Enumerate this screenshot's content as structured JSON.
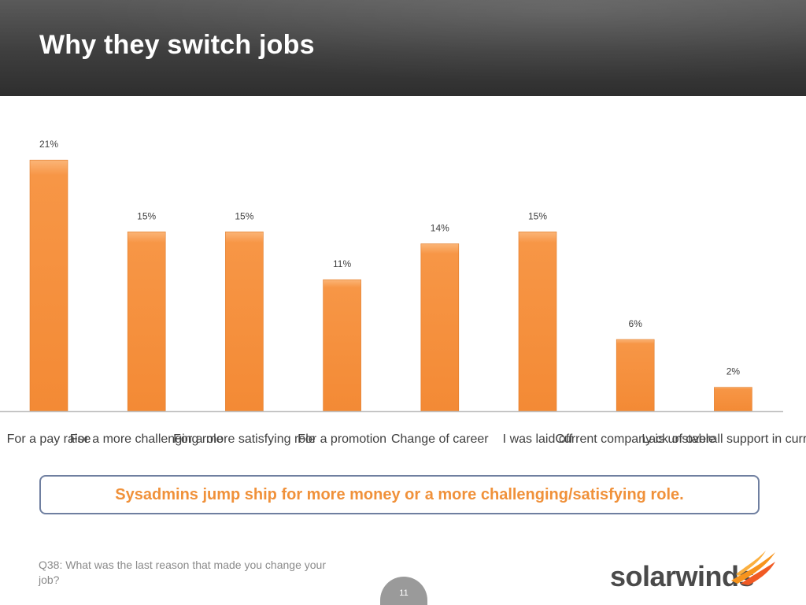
{
  "header": {
    "title": "Why they switch jobs"
  },
  "chart_data": {
    "type": "bar",
    "categories": [
      "For a pay raise",
      "For a more challenging role",
      "For a more satisfying role",
      "For a promotion",
      "Change of career",
      "I was laid off",
      "Current company is unstable",
      "Lack of overall support in current"
    ],
    "values": [
      21,
      15,
      15,
      11,
      14,
      15,
      6,
      2
    ],
    "data_labels": [
      "21%",
      "15%",
      "15%",
      "11%",
      "14%",
      "15%",
      "6%",
      "2%"
    ],
    "ylim": [
      0,
      22
    ],
    "grid": false,
    "bar_color": "#f79646",
    "axis_color": "#bfbfbf"
  },
  "callout": {
    "text": "Sysadmins jump ship for more money or a more challenging/satisfying role."
  },
  "footnote": {
    "text": "Q38: What was the last reason that made you change your job?"
  },
  "page": {
    "number": "11"
  },
  "logo": {
    "text": "solarwinds"
  },
  "colors": {
    "accent": "#f0913a",
    "header_bg": "#3e3e3e",
    "callout_border": "#6f7fa0"
  }
}
